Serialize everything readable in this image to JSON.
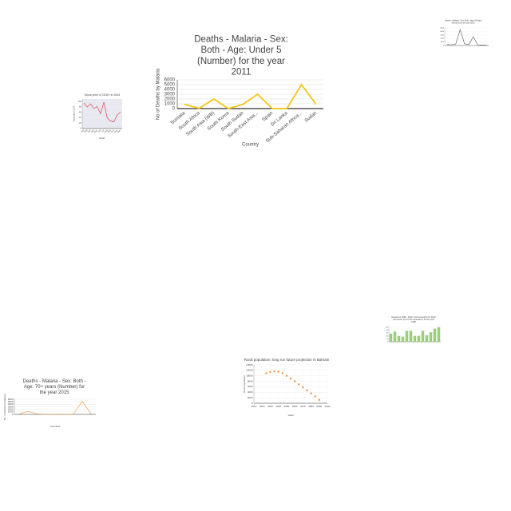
{
  "chart_data": [
    {
      "type": "line",
      "title": "Deaths - Malaria - Sex: Both - Age: Under 5 (Number) for the year 2011",
      "categories": [
        "Somalia",
        "South Africa",
        "South Asia (WB)",
        "South Korea",
        "South Sudan",
        "South-East Asia...",
        "Spain",
        "Sri Lanka",
        "Sub-Saharan Africa...",
        "Sudan"
      ],
      "series": [
        {
          "name": "Deaths",
          "color": "#f5c518",
          "values": [
            900,
            50,
            2000,
            0,
            900,
            3000,
            0,
            0,
            5000,
            900
          ]
        }
      ],
      "ylim": [
        0,
        6000
      ],
      "yticks": [
        0,
        1000,
        2000,
        3000,
        4000,
        5000,
        6000
      ],
      "grid": true,
      "x_label": "Country",
      "y_label": "No of Deaths by Malaria"
    },
    {
      "type": "line",
      "title": "Stock price of CEDY in 2004",
      "categories": [
        "Jan",
        "Feb",
        "Mar",
        "Apr",
        "May",
        "Jun",
        "Jul",
        "Aug",
        "Sep",
        "Oct",
        "Nov",
        "Dec"
      ],
      "series": [
        {
          "name": "CEDY",
          "color": "#e03030",
          "values": [
            95,
            80,
            92,
            75,
            82,
            55,
            98,
            40,
            28,
            25,
            50,
            62
          ]
        }
      ],
      "ylim": [
        0,
        110
      ],
      "yticks": [
        0,
        20,
        40,
        60,
        80,
        100
      ],
      "grid": true,
      "background": "#e8e8f0",
      "x_label": "Month",
      "y_label": "Stock price (USD)"
    },
    {
      "type": "line",
      "title": "Deaths - Malaria - Sex: Both - Age: All Ages (Number) for the year 2015",
      "categories": [
        null,
        null,
        null,
        null,
        null,
        null,
        null,
        null,
        null,
        null
      ],
      "series": [
        {
          "name": "Deaths",
          "color": "#555555",
          "values": [
            300,
            200,
            400,
            4500,
            500,
            300,
            2500,
            200,
            150,
            100
          ]
        }
      ],
      "ylim": [
        0,
        5000
      ],
      "yticks": [
        0,
        1000,
        2000,
        3000,
        4000,
        5000
      ],
      "grid": true
    },
    {
      "type": "bar",
      "title": "Emissions 1990 - 2010: CH4 emissions by fossil fuel sector (kt of CO2 equivalent) for the year 1995",
      "categories": [
        null,
        null,
        null,
        null,
        null,
        null,
        null,
        null,
        null,
        null,
        null,
        null,
        null
      ],
      "series": [
        {
          "name": "Emissions",
          "color": "#9acd80",
          "values": [
            55,
            70,
            40,
            35,
            75,
            75,
            40,
            40,
            75,
            45,
            65,
            90,
            100
          ]
        }
      ],
      "ylim": [
        0,
        110
      ],
      "yticks": [
        0,
        20,
        40,
        60,
        80,
        100
      ],
      "grid": true
    },
    {
      "type": "scatter",
      "title": "Rural population: long run future projection in Bahrain",
      "x": [
        2025,
        2030,
        2035,
        2040,
        2045,
        2050,
        2055,
        2060,
        2065,
        2070,
        2075,
        2080,
        2085,
        2090
      ],
      "series": [
        {
          "name": "Rural population",
          "color": "#f0923a",
          "values": [
            11000,
            11400,
            11600,
            11500,
            11000,
            10000,
            9000,
            8000,
            6900,
            5800,
            4700,
            3600,
            2500,
            1200
          ]
        }
      ],
      "xlim": [
        2010,
        2100
      ],
      "xticks": [
        2010,
        2020,
        2030,
        2040,
        2050,
        2060,
        2070,
        2080,
        2090,
        2100
      ],
      "ylim": [
        0,
        14000
      ],
      "yticks": [
        0,
        2000,
        4000,
        6000,
        8000,
        10000,
        12000,
        14000
      ],
      "grid": true,
      "x_label": "Years",
      "y_label": "Rural population"
    },
    {
      "type": "line",
      "title": "Deaths - Malaria - Sex: Both - Age: 70+ years (Number) for the year 2015",
      "categories": [
        null,
        null,
        null,
        null,
        null,
        null,
        null,
        null,
        null
      ],
      "series": [
        {
          "name": "Deaths",
          "color": "#f0923a",
          "values": [
            100,
            1200,
            200,
            0,
            0,
            0,
            0,
            5200,
            100
          ]
        }
      ],
      "ylim": [
        0,
        6000
      ],
      "yticks": [
        0,
        1000,
        2000,
        3000,
        4000,
        5000,
        6000
      ],
      "grid": true,
      "x_label": "Countries",
      "y_label": "No. of Deaths by Malaria"
    }
  ]
}
